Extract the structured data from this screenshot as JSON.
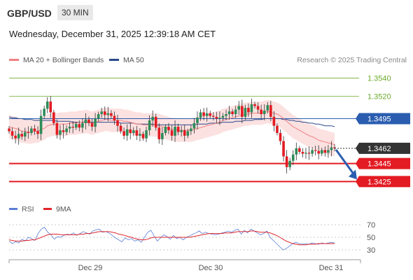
{
  "header": {
    "pair": "GBP/USD",
    "timeframe": "30 MIN",
    "datetime": "Wednesday, December 31, 2025 12:39:18 AM CET"
  },
  "legend": {
    "ma20": "MA 20 + Bollinger Bands",
    "ma50": "MA 50",
    "source": "Research © 2025 Trading Central",
    "ma20_color": "#f08080",
    "ma50_color": "#2a4a8a"
  },
  "rsi_legend": {
    "rsi": "RSI",
    "ma9": "9MA",
    "rsi_color": "#5b7fd6",
    "ma9_color": "#e0262c"
  },
  "chart_data": [
    {
      "type": "candlestick",
      "ylim": [
        1.3405,
        1.3553
      ],
      "x_labels": [
        "Dec 29",
        "Dec 30",
        "Dec 31"
      ],
      "current_price": "1.3462",
      "levels": [
        {
          "value": 1.354,
          "label": "1.3540",
          "style": "resistance",
          "color": "#6aaa2a"
        },
        {
          "value": 1.352,
          "label": "1.3520",
          "style": "resistance",
          "color": "#6aaa2a"
        },
        {
          "value": 1.3495,
          "label": "1.3495",
          "style": "pivot",
          "color": "#2a5db0"
        },
        {
          "value": 1.3445,
          "label": "1.3445",
          "style": "support",
          "color": "#e31b23"
        },
        {
          "value": 1.3425,
          "label": "1.3425",
          "style": "support",
          "color": "#e31b23"
        }
      ],
      "close": [
        1.3481,
        1.3476,
        1.3473,
        1.3478,
        1.3475,
        1.348,
        1.3479,
        1.3484,
        1.3481,
        1.3478,
        1.3498,
        1.3506,
        1.3514,
        1.3502,
        1.349,
        1.3477,
        1.3482,
        1.348,
        1.3484,
        1.3486,
        1.3485,
        1.3489,
        1.3485,
        1.349,
        1.3494,
        1.349,
        1.3486,
        1.3495,
        1.35,
        1.3503,
        1.3499,
        1.3501,
        1.3498,
        1.3493,
        1.3487,
        1.3481,
        1.3476,
        1.3483,
        1.3479,
        1.3482,
        1.3476,
        1.3478,
        1.3473,
        1.3482,
        1.3493,
        1.3497,
        1.3485,
        1.3472,
        1.3479,
        1.3486,
        1.3482,
        1.3476,
        1.3486,
        1.348,
        1.3482,
        1.3476,
        1.3481,
        1.3484,
        1.349,
        1.3496,
        1.3502,
        1.3498,
        1.3501,
        1.3498,
        1.3497,
        1.3495,
        1.3496,
        1.3498,
        1.35,
        1.3503,
        1.35,
        1.3505,
        1.3509,
        1.3497,
        1.3507,
        1.3502,
        1.3511,
        1.3509,
        1.3505,
        1.35,
        1.3504,
        1.351,
        1.3497,
        1.3487,
        1.3479,
        1.347,
        1.3453,
        1.3441,
        1.3448,
        1.3455,
        1.3462,
        1.3458,
        1.3456,
        1.3457,
        1.3456,
        1.346,
        1.3459,
        1.3456,
        1.346,
        1.3457,
        1.346,
        1.3463,
        1.3462
      ],
      "ma20": [
        1.3486,
        1.3485,
        1.3484,
        1.3483,
        1.3481,
        1.3481,
        1.348,
        1.348,
        1.3481,
        1.3481,
        1.3483,
        1.3484,
        1.3487,
        1.3488,
        1.3489,
        1.3488,
        1.3489,
        1.3489,
        1.3489,
        1.349,
        1.349,
        1.349,
        1.3491,
        1.3491,
        1.3492,
        1.3491,
        1.349,
        1.3491,
        1.3492,
        1.3493,
        1.3494,
        1.3494,
        1.3493,
        1.3493,
        1.3493,
        1.3493,
        1.3492,
        1.3492,
        1.3491,
        1.349,
        1.3489,
        1.3489,
        1.3488,
        1.3488,
        1.3488,
        1.3488,
        1.3488,
        1.3487,
        1.3486,
        1.3485,
        1.3484,
        1.3483,
        1.3483,
        1.3482,
        1.3482,
        1.3482,
        1.3482,
        1.3482,
        1.3483,
        1.3484,
        1.3485,
        1.3486,
        1.3487,
        1.3488,
        1.3489,
        1.349,
        1.3491,
        1.3493,
        1.3494,
        1.3495,
        1.3496,
        1.3497,
        1.3498,
        1.3499,
        1.35,
        1.35,
        1.3501,
        1.3501,
        1.3501,
        1.3501,
        1.3502,
        1.3503,
        1.3502,
        1.3501,
        1.35,
        1.3498,
        1.3495,
        1.3492,
        1.3489,
        1.3486,
        1.3484,
        1.3482,
        1.348,
        1.3478,
        1.3476,
        1.3475,
        1.3473,
        1.3471,
        1.347,
        1.3469,
        1.3468,
        1.3467,
        1.3466
      ],
      "ma50": [
        1.3497,
        1.3496,
        1.3496,
        1.3495,
        1.3495,
        1.3494,
        1.3494,
        1.3494,
        1.3493,
        1.3493,
        1.3493,
        1.3493,
        1.3493,
        1.3493,
        1.3493,
        1.3492,
        1.3492,
        1.3492,
        1.3492,
        1.3492,
        1.3491,
        1.3491,
        1.3491,
        1.3491,
        1.3491,
        1.3491,
        1.3491,
        1.3491,
        1.3491,
        1.3491,
        1.3491,
        1.3491,
        1.3491,
        1.3491,
        1.3491,
        1.349,
        1.349,
        1.349,
        1.349,
        1.349,
        1.3489,
        1.3489,
        1.3489,
        1.3489,
        1.3489,
        1.3489,
        1.3488,
        1.3488,
        1.3488,
        1.3488,
        1.3488,
        1.3488,
        1.3488,
        1.3488,
        1.3488,
        1.3488,
        1.3488,
        1.3488,
        1.3488,
        1.3489,
        1.3489,
        1.3489,
        1.3489,
        1.349,
        1.349,
        1.349,
        1.349,
        1.3491,
        1.3491,
        1.3491,
        1.3491,
        1.3492,
        1.3492,
        1.3492,
        1.3493,
        1.3493,
        1.3493,
        1.3494,
        1.3494,
        1.3494,
        1.3495,
        1.3495,
        1.3495,
        1.3495,
        1.3495,
        1.3495,
        1.3494,
        1.3494,
        1.3493,
        1.3493,
        1.3492,
        1.3492,
        1.3491,
        1.3491,
        1.349,
        1.349,
        1.3489,
        1.3489,
        1.3488,
        1.3487,
        1.3487,
        1.3487,
        1.3486
      ],
      "bb_width": 0.0013
    },
    {
      "type": "line",
      "title": "RSI",
      "ylim": [
        20,
        80
      ],
      "y_ticks": [
        "70",
        "50",
        "30"
      ],
      "rsi": [
        44,
        40,
        43,
        41,
        47,
        44,
        50,
        48,
        45,
        56,
        63,
        66,
        58,
        54,
        47,
        51,
        50,
        53,
        55,
        54,
        57,
        53,
        56,
        59,
        57,
        55,
        60,
        62,
        63,
        58,
        59,
        57,
        53,
        49,
        46,
        43,
        49,
        46,
        48,
        44,
        46,
        42,
        50,
        58,
        61,
        52,
        44,
        49,
        54,
        51,
        47,
        53,
        48,
        50,
        46,
        50,
        52,
        55,
        57,
        60,
        56,
        58,
        56,
        55,
        54,
        55,
        57,
        58,
        60,
        58,
        61,
        63,
        55,
        61,
        57,
        63,
        60,
        57,
        54,
        56,
        60,
        50,
        45,
        40,
        35,
        30,
        32,
        36,
        40,
        42,
        40,
        39,
        40,
        39,
        41,
        40,
        39,
        41,
        40,
        41,
        42,
        41
      ],
      "ma9": [
        46,
        45,
        44,
        44,
        44,
        45,
        45,
        46,
        46,
        48,
        50,
        52,
        54,
        55,
        55,
        55,
        54,
        54,
        54,
        54,
        54,
        54,
        55,
        55,
        56,
        56,
        57,
        58,
        59,
        59,
        59,
        59,
        58,
        57,
        55,
        54,
        53,
        51,
        50,
        48,
        47,
        46,
        46,
        47,
        49,
        50,
        50,
        50,
        50,
        50,
        50,
        50,
        50,
        50,
        50,
        50,
        50,
        51,
        52,
        53,
        54,
        55,
        56,
        56,
        56,
        56,
        56,
        57,
        57,
        57,
        58,
        59,
        59,
        59,
        59,
        60,
        60,
        59,
        58,
        58,
        58,
        57,
        55,
        53,
        50,
        47,
        44,
        42,
        40,
        39,
        38,
        38,
        38,
        39,
        39,
        39,
        40,
        40,
        40,
        40,
        40,
        40
      ]
    }
  ]
}
